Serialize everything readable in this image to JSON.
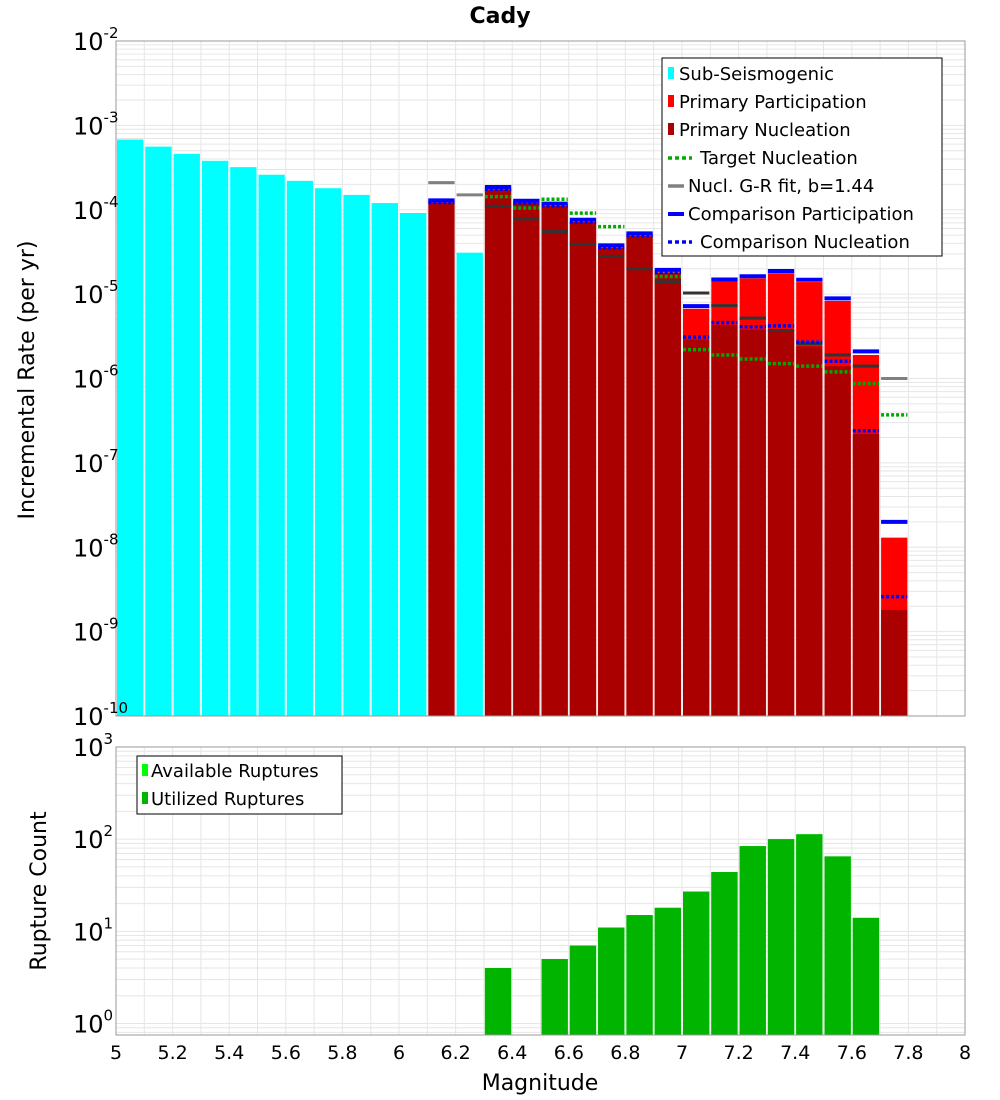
{
  "colors": {
    "sub_seismogenic": "#00ffff",
    "primary_participation": "#ff0000",
    "primary_nucleation": "#aa0000",
    "target_nucleation": "#00aa00",
    "gr_fit": "#808080",
    "gr_fit_dark": "#333333",
    "comparison": "#0000ff",
    "available": "#00ff00",
    "utilized": "#00b400",
    "grid": "#e6e6e6"
  },
  "chart_data": [
    {
      "type": "bar",
      "title": "Cady",
      "xlabel": "Magnitude",
      "ylabel": "Incremental Rate (per yr)",
      "yscale": "log",
      "xlim": [
        5,
        8
      ],
      "ylim": [
        1e-10,
        0.01
      ],
      "bin_width": 0.1,
      "x_ticks": [
        "5",
        "5.2",
        "5.4",
        "5.6",
        "5.8",
        "6",
        "6.2",
        "6.4",
        "6.6",
        "6.8",
        "7",
        "7.2",
        "7.4",
        "7.6",
        "7.8",
        "8"
      ],
      "y_ticks": [
        {
          "base": "10",
          "exp": "-10"
        },
        {
          "base": "10",
          "exp": "-9"
        },
        {
          "base": "10",
          "exp": "-8"
        },
        {
          "base": "10",
          "exp": "-7"
        },
        {
          "base": "10",
          "exp": "-6"
        },
        {
          "base": "10",
          "exp": "-5"
        },
        {
          "base": "10",
          "exp": "-4"
        },
        {
          "base": "10",
          "exp": "-3"
        },
        {
          "base": "10",
          "exp": "-2"
        }
      ],
      "legend": [
        "Sub-Seismogenic",
        "Primary Participation",
        "Primary Nucleation",
        "Target Nucleation",
        "Nucl. G-R fit, b=1.44",
        "Comparison Participation",
        "Comparison Nucleation"
      ],
      "series": {
        "sub_seismogenic": {
          "name": "Sub-Seismogenic",
          "x": [
            5.05,
            5.15,
            5.25,
            5.35,
            5.45,
            5.55,
            5.65,
            5.75,
            5.85,
            5.95,
            6.05,
            6.25
          ],
          "values": [
            0.00068,
            0.00056,
            0.00046,
            0.00038,
            0.00032,
            0.00026,
            0.00022,
            0.00018,
            0.00015,
            0.00012,
            9.15e-05,
            3.1e-05
          ]
        },
        "primary_participation": {
          "name": "Primary Participation",
          "x": [
            6.35,
            6.45,
            6.55,
            6.65,
            6.75,
            6.85,
            6.95,
            7.05,
            7.15,
            7.25,
            7.35,
            7.45,
            7.55,
            7.65,
            7.75
          ],
          "values": [
            0.000175,
            0.000121,
            0.000111,
            7.15e-05,
            3.55e-05,
            4.92e-05,
            1.81e-05,
            6.7e-06,
            1.41e-05,
            1.54e-05,
            1.77e-05,
            1.39e-05,
            8.3e-06,
            1.9e-06,
            1.3e-08
          ]
        },
        "primary_nucleation": {
          "name": "Primary Nucleation",
          "x": [
            6.15,
            6.35,
            6.45,
            6.55,
            6.65,
            6.75,
            6.85,
            6.95,
            7.05,
            7.15,
            7.25,
            7.35,
            7.45,
            7.55,
            7.65,
            7.75
          ],
          "values": [
            0.000122,
            0.000175,
            0.000121,
            0.000111,
            7.15e-05,
            3.55e-05,
            4.92e-05,
            1.81e-05,
            2.9e-06,
            4.3e-06,
            3.8e-06,
            3.8e-06,
            2.4e-06,
            1.4e-06,
            2.2e-07,
            1.8e-09
          ]
        },
        "target_nucleation": {
          "name": "Target Nucleation",
          "x": [
            6.35,
            6.45,
            6.55,
            6.65,
            6.75,
            6.85,
            6.95,
            7.05,
            7.15,
            7.25,
            7.35,
            7.45,
            7.55,
            7.65,
            7.75
          ],
          "values": [
            0.000143,
            0.000105,
            0.000133,
            9.12e-05,
            6.31e-05,
            5.01e-05,
            1.62e-05,
            2.2e-06,
            1.9e-06,
            1.7e-06,
            1.5e-06,
            1.4e-06,
            1.2e-06,
            8.7e-07,
            3.7e-07
          ]
        },
        "gr_fit": {
          "name": "Nucl. G-R fit, b=1.44",
          "x": [
            6.15,
            6.25,
            6.35,
            6.45,
            6.55,
            6.65,
            6.75,
            6.85,
            6.95,
            7.05,
            7.15,
            7.25,
            7.35,
            7.45,
            7.55,
            7.65,
            7.75
          ],
          "values": [
            0.00021,
            0.00015,
            0.00011,
            7.8e-05,
            5.5e-05,
            3.9e-05,
            2.8e-05,
            2e-05,
            1.4e-05,
            1.03e-05,
            7.3e-06,
            5.2e-06,
            3.7e-06,
            2.6e-06,
            1.9e-06,
            1.4e-06,
            1e-06
          ]
        },
        "comparison_participation": {
          "name": "Comparison Participation",
          "x": [
            6.15,
            6.35,
            6.45,
            6.55,
            6.65,
            6.75,
            6.85,
            6.95,
            7.05,
            7.15,
            7.25,
            7.35,
            7.45,
            7.55,
            7.65,
            7.75
          ],
          "values": [
            0.000129,
            0.000186,
            0.000128,
            0.000118,
            7.6e-05,
            3.78e-05,
            5.25e-05,
            1.94e-05,
            7.2e-06,
            1.49e-05,
            1.63e-05,
            1.88e-05,
            1.48e-05,
            8.9e-06,
            2.1e-06,
            2e-08
          ]
        },
        "comparison_nucleation": {
          "name": "Comparison Nucleation",
          "x": [
            6.15,
            6.35,
            6.45,
            6.55,
            6.65,
            6.75,
            6.85,
            6.95,
            7.05,
            7.15,
            7.25,
            7.35,
            7.45,
            7.55,
            7.65,
            7.75
          ],
          "values": [
            0.000122,
            0.000175,
            0.000121,
            0.000111,
            7.15e-05,
            3.55e-05,
            4.92e-05,
            1.81e-05,
            3.1e-06,
            4.6e-06,
            4.1e-06,
            4.2e-06,
            2.7e-06,
            1.6e-06,
            2.4e-07,
            2.6e-09
          ]
        }
      }
    },
    {
      "type": "bar",
      "xlabel": "Magnitude",
      "ylabel": "Rupture Count",
      "yscale": "log",
      "xlim": [
        5,
        8
      ],
      "ylim": [
        0.75,
        1000
      ],
      "y_ticks": [
        {
          "base": "10",
          "exp": "0"
        },
        {
          "base": "10",
          "exp": "1"
        },
        {
          "base": "10",
          "exp": "2"
        },
        {
          "base": "10",
          "exp": "3"
        }
      ],
      "legend": [
        "Available Ruptures",
        "Utilized Ruptures"
      ],
      "series": {
        "available": {
          "name": "Available Ruptures",
          "x": [
            6.35,
            6.55,
            6.65,
            6.75,
            6.85,
            6.95,
            7.05,
            7.15,
            7.25,
            7.35,
            7.45,
            7.55,
            7.65
          ],
          "values": [
            4,
            5,
            7,
            11,
            15,
            18,
            27,
            44,
            84,
            100,
            113,
            65,
            14
          ]
        },
        "utilized": {
          "name": "Utilized Ruptures",
          "x": [
            6.35,
            6.55,
            6.65,
            6.75,
            6.85,
            6.95,
            7.05,
            7.15,
            7.25,
            7.35,
            7.45,
            7.55,
            7.65
          ],
          "values": [
            4,
            5,
            7,
            11,
            15,
            18,
            27,
            44,
            84,
            100,
            113,
            65,
            14
          ]
        }
      }
    }
  ]
}
